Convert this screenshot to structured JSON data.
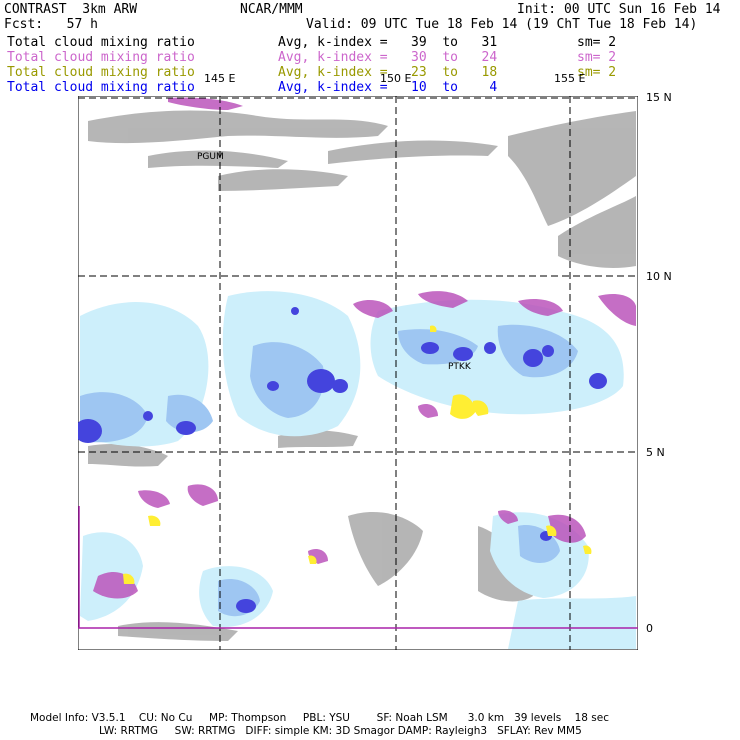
{
  "header": {
    "model": "CONTRAST  3km ARW",
    "org": "NCAR/MMM",
    "init": "Init: 00 UTC Sun 16 Feb 14",
    "fcst": "Fcst:   57 h",
    "valid": "Valid: 09 UTC Tue 18 Feb 14 (19 ChT Tue 18 Feb 14)"
  },
  "fields": [
    {
      "name": "Total cloud mixing ratio",
      "range": "Avg, k-index =   39  to   31",
      "sm": "sm= 2",
      "color": "#000000"
    },
    {
      "name": "Total cloud mixing ratio",
      "range": "Avg, k-index =   30  to   24",
      "sm": "sm= 2",
      "color": "#cc66cc"
    },
    {
      "name": "Total cloud mixing ratio",
      "range": "Avg, k-index =   23  to   18",
      "sm": "sm= 2",
      "color": "#999900"
    },
    {
      "name": "Total cloud mixing ratio",
      "range": "Avg, k-index =   10  to    4",
      "sm": "",
      "color": "#0000ee"
    }
  ],
  "map": {
    "lon_labels": [
      "145 E",
      "150 E",
      "155 E"
    ],
    "lat_labels": [
      "15 N",
      "10 N",
      "5 N",
      "0"
    ],
    "stations": [
      "PGUM",
      "PTKK"
    ]
  },
  "footer": {
    "line1": "Model Info: V3.5.1    CU: No Cu     MP: Thompson     PBL: YSU        SF: Noah LSM      3.0 km   39 levels    18 sec",
    "line2": "LW: RRTMG     SW: RRTMG   DIFF: simple KM: 3D Smagor DAMP: Rayleigh3   SFLAY: Rev MM5"
  }
}
